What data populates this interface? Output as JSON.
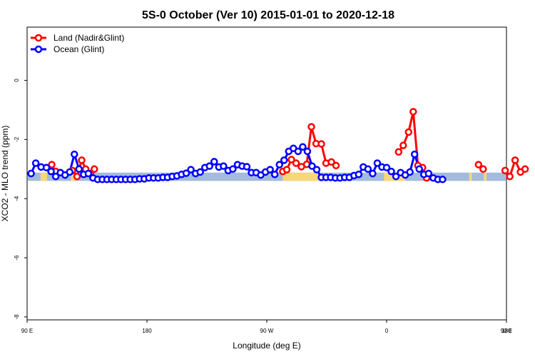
{
  "chart_data": {
    "type": "line",
    "title": "5S-0 October (Ver 10)   2015-01-01 to 2020-12-18",
    "xlabel": "Longitude (deg E)",
    "ylabel": "XCO2 - MLO trend (ppm)",
    "x_tick_labels": [
      "90 E",
      "180",
      "90 W",
      "0",
      "90 E",
      "180"
    ],
    "y_tick_labels": [
      "0",
      "-2",
      "-4",
      "-6",
      "-8"
    ],
    "y_ticks": [
      0,
      -2,
      -4,
      -6,
      -8
    ],
    "xlim": [
      90,
      450
    ],
    "ylim": [
      -8.1,
      1.8
    ],
    "grid": false,
    "legend_position": "top-left",
    "series": [
      {
        "name": "Land (Nadir&Glint)",
        "color": "#ff0000",
        "segments": [
          [
            [
              108.5,
              -2.85
            ],
            [
              111.5,
              -3.08
            ]
          ],
          [
            [
              124,
              -3.05
            ],
            [
              127.5,
              -3.25
            ],
            [
              131,
              -2.7
            ],
            [
              134,
              -3.0
            ]
          ],
          [
            [
              137.5,
              -3.15
            ],
            [
              140.5,
              -3.0
            ]
          ],
          [
            [
              282,
              -3.08
            ],
            [
              285,
              -3.02
            ],
            [
              288.5,
              -2.68
            ],
            [
              292,
              -2.8
            ],
            [
              296,
              -2.92
            ],
            [
              300,
              -2.84
            ],
            [
              303.5,
              -1.57
            ],
            [
              307,
              -2.14
            ],
            [
              311,
              -2.15
            ],
            [
              314.5,
              -2.8
            ],
            [
              318.5,
              -2.76
            ],
            [
              322,
              -2.88
            ]
          ],
          [
            [
              369,
              -2.42
            ],
            [
              372.5,
              -2.2
            ],
            [
              376.5,
              -1.75
            ],
            [
              380,
              -1.06
            ],
            [
              383.5,
              -2.88
            ],
            [
              387,
              -2.95
            ],
            [
              390,
              -3.3
            ]
          ],
          [
            [
              429,
              -2.85
            ],
            [
              432.5,
              -3.0
            ]
          ],
          [
            [
              449,
              -3.05
            ],
            [
              452.5,
              -3.25
            ],
            [
              456.5,
              -2.7
            ],
            [
              460.5,
              -3.1
            ],
            [
              464,
              -3.0
            ]
          ]
        ]
      },
      {
        "name": "Ocean (Glint)",
        "color": "#0000ff",
        "values": [
          [
            93,
            -3.15
          ],
          [
            96.5,
            -2.8
          ],
          [
            100.5,
            -2.93
          ],
          [
            104.5,
            -2.95
          ],
          [
            108,
            -3.08
          ],
          [
            111.5,
            -3.25
          ],
          [
            115,
            -3.12
          ],
          [
            118.5,
            -3.2
          ],
          [
            122,
            -3.1
          ],
          [
            125.5,
            -2.5
          ],
          [
            129,
            -3.0
          ],
          [
            132.5,
            -3.18
          ],
          [
            136,
            -3.15
          ],
          [
            139.5,
            -3.3
          ],
          [
            143,
            -3.35
          ],
          [
            146.5,
            -3.35
          ],
          [
            150,
            -3.35
          ],
          [
            153.5,
            -3.35
          ],
          [
            157,
            -3.35
          ],
          [
            160.5,
            -3.35
          ],
          [
            164,
            -3.35
          ],
          [
            167.5,
            -3.35
          ],
          [
            171,
            -3.35
          ],
          [
            174.5,
            -3.33
          ],
          [
            178,
            -3.33
          ],
          [
            181.5,
            -3.3
          ],
          [
            185,
            -3.3
          ],
          [
            188.5,
            -3.3
          ],
          [
            192,
            -3.28
          ],
          [
            195.5,
            -3.28
          ],
          [
            199,
            -3.25
          ],
          [
            202.5,
            -3.23
          ],
          [
            206,
            -3.18
          ],
          [
            209.5,
            -3.14
          ],
          [
            213,
            -3.02
          ],
          [
            216.5,
            -3.15
          ],
          [
            220,
            -3.1
          ],
          [
            223.5,
            -2.95
          ],
          [
            227,
            -2.9
          ],
          [
            230.5,
            -2.75
          ],
          [
            234,
            -2.93
          ],
          [
            237.5,
            -2.9
          ],
          [
            241,
            -3.05
          ],
          [
            244.5,
            -3.0
          ],
          [
            248,
            -2.85
          ],
          [
            251.5,
            -2.9
          ],
          [
            255,
            -2.92
          ],
          [
            258.5,
            -3.12
          ],
          [
            262,
            -3.12
          ],
          [
            265.5,
            -3.2
          ],
          [
            269,
            -3.1
          ],
          [
            272.5,
            -3.02
          ],
          [
            276,
            -3.18
          ],
          [
            279.5,
            -2.85
          ],
          [
            283,
            -2.7
          ],
          [
            286.5,
            -2.4
          ],
          [
            290,
            -2.3
          ],
          [
            293.5,
            -2.4
          ],
          [
            297,
            -2.25
          ],
          [
            300.5,
            -2.4
          ],
          [
            304,
            -2.9
          ],
          [
            307.5,
            -3.02
          ],
          [
            311,
            -3.28
          ],
          [
            314.5,
            -3.28
          ],
          [
            318,
            -3.28
          ],
          [
            321.5,
            -3.3
          ],
          [
            325,
            -3.3
          ],
          [
            328.5,
            -3.28
          ],
          [
            332,
            -3.28
          ],
          [
            335.5,
            -3.22
          ],
          [
            339,
            -3.18
          ],
          [
            342.5,
            -2.93
          ],
          [
            346,
            -3.0
          ],
          [
            349.5,
            -3.15
          ],
          [
            353,
            -2.8
          ],
          [
            356.5,
            -2.93
          ],
          [
            360,
            -2.95
          ],
          [
            363.5,
            -3.08
          ],
          [
            367,
            -3.25
          ],
          [
            370.5,
            -3.12
          ],
          [
            374,
            -3.2
          ],
          [
            377.5,
            -3.1
          ],
          [
            381,
            -2.5
          ],
          [
            384.5,
            -3.0
          ],
          [
            388,
            -3.18
          ],
          [
            391.5,
            -3.15
          ],
          [
            395,
            -3.3
          ],
          [
            398.5,
            -3.35
          ],
          [
            402,
            -3.35
          ]
        ]
      }
    ]
  },
  "background_bands": {
    "ocean_color": "#a3bbdc",
    "land_color": "#f7d77b"
  }
}
